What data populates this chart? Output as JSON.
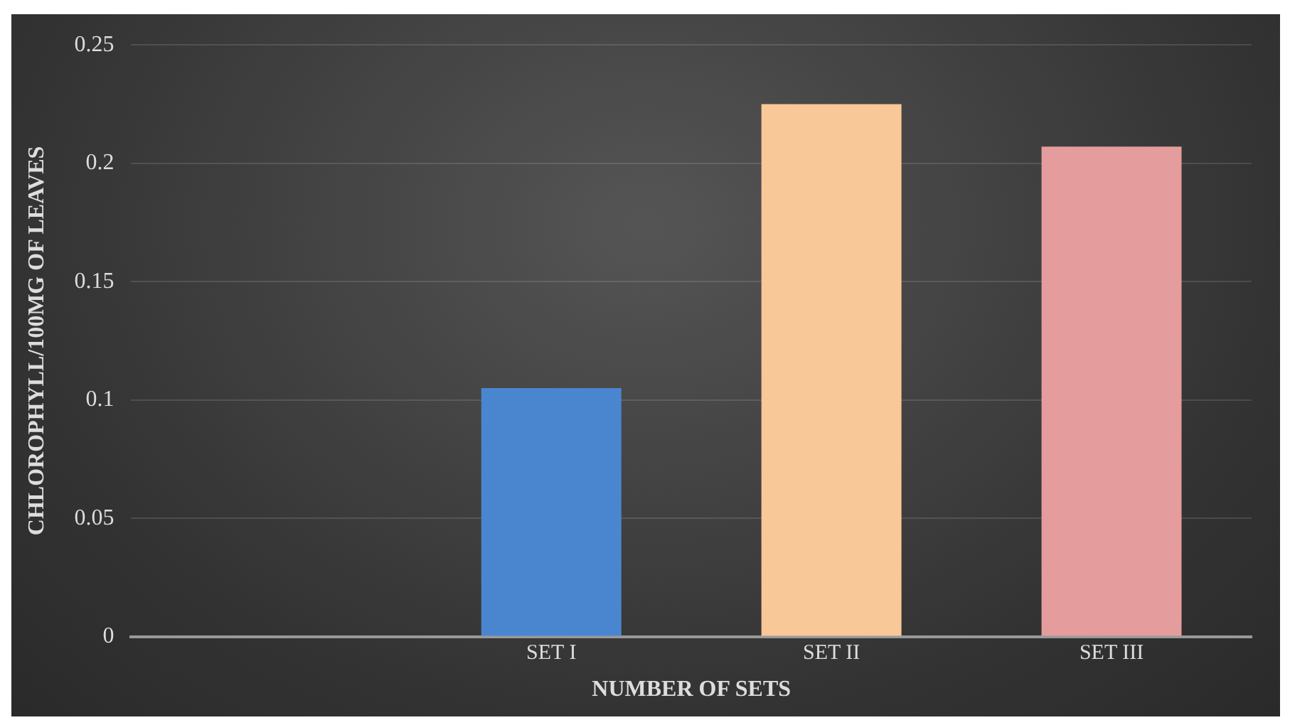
{
  "chart_data": {
    "type": "bar",
    "xlabel": "NUMBER OF SETS",
    "ylabel": "CHLOROPHYLL/100MG OF LEAVES",
    "categories": [
      null,
      "SET I",
      "SET II",
      "SET III"
    ],
    "values": [
      null,
      0.105,
      0.225,
      0.207
    ],
    "colors": [
      "#4a86d0",
      "#4a86d0",
      "#f8c898",
      "#e49c9c"
    ],
    "ylim": [
      0,
      0.25
    ],
    "yticks": [
      0,
      0.05,
      0.1,
      0.15,
      0.2,
      0.25
    ],
    "grid": "y"
  }
}
